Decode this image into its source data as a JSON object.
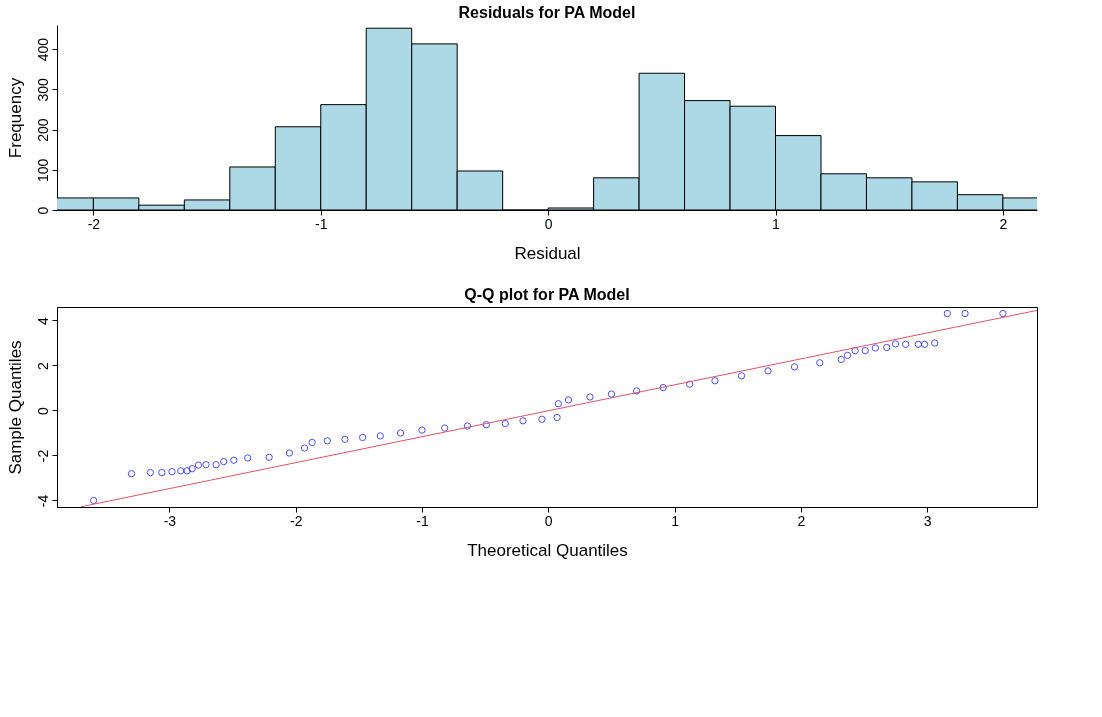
{
  "chart_data": [
    {
      "type": "histogram",
      "title": "Residuals for PA Model",
      "xlabel": "Residual",
      "ylabel": "Frequency",
      "color": "#add8e6",
      "bins": [
        -2.2,
        -2.0,
        -1.8,
        -1.6,
        -1.4,
        -1.2,
        -1.0,
        -0.8,
        -0.6,
        -0.4,
        -0.2,
        0.0,
        0.2,
        0.4,
        0.6,
        0.8,
        1.0,
        1.2,
        1.4,
        1.6,
        1.8,
        2.0,
        2.2
      ],
      "values": [
        30,
        30,
        12,
        25,
        107,
        207,
        262,
        452,
        413,
        97,
        0,
        5,
        80,
        340,
        272,
        258,
        185,
        90,
        80,
        70,
        38,
        30
      ],
      "xlim": [
        -2.16,
        2.15
      ],
      "xticks": [
        -2,
        -1,
        0,
        1,
        2
      ],
      "ylim": [
        0,
        460
      ],
      "yticks": [
        0,
        100,
        200,
        300,
        400
      ],
      "grid": false
    },
    {
      "type": "scatter",
      "title": "Q-Q plot for PA Model",
      "xlabel": "Theoretical Quantiles",
      "ylabel": "Sample Quantiles",
      "marker": "circle",
      "xlim": [
        -3.89,
        3.87
      ],
      "xticks": [
        -3,
        -2,
        -1,
        0,
        1,
        2,
        3
      ],
      "ylim": [
        -4.29,
        4.6
      ],
      "yticks": [
        -4,
        -2,
        0,
        2,
        4
      ],
      "grid": false,
      "series": [
        {
          "type": "scatter",
          "color": "#0000ff",
          "x": [
            -3.6,
            -3.3,
            -3.15,
            -3.06,
            -2.98,
            -2.91,
            -2.86,
            -2.82,
            -2.77,
            -2.71,
            -2.63,
            -2.57,
            -2.49,
            -2.38,
            -2.21,
            -2.05,
            -1.93,
            -1.87,
            -1.75,
            -1.61,
            -1.47,
            -1.33,
            -1.17,
            -1.0,
            -0.82,
            -0.64,
            -0.49,
            -0.34,
            -0.2,
            -0.05,
            0.07,
            0.08,
            0.16,
            0.33,
            0.5,
            0.7,
            0.91,
            1.12,
            1.32,
            1.53,
            1.74,
            1.95,
            2.15,
            2.32,
            2.37,
            2.43,
            2.51,
            2.59,
            2.68,
            2.75,
            2.83,
            2.93,
            2.98,
            3.06,
            3.16,
            3.3,
            3.6
          ],
          "values": [
            -4.0,
            -2.81,
            -2.76,
            -2.76,
            -2.72,
            -2.68,
            -2.68,
            -2.59,
            -2.43,
            -2.41,
            -2.41,
            -2.27,
            -2.21,
            -2.11,
            -2.08,
            -1.89,
            -1.67,
            -1.42,
            -1.35,
            -1.28,
            -1.2,
            -1.13,
            -1.0,
            -0.87,
            -0.78,
            -0.69,
            -0.63,
            -0.58,
            -0.46,
            -0.39,
            -0.31,
            0.3,
            0.47,
            0.6,
            0.73,
            0.87,
            1.02,
            1.17,
            1.32,
            1.54,
            1.76,
            1.94,
            2.12,
            2.27,
            2.45,
            2.66,
            2.66,
            2.78,
            2.8,
            2.96,
            2.94,
            2.94,
            2.94,
            3.0,
            4.31,
            4.31,
            4.31
          ]
        },
        {
          "type": "line",
          "marker": "none",
          "color": "#df536b",
          "x": [
            -3.7,
            3.87
          ],
          "values": [
            -4.28,
            4.45
          ]
        }
      ]
    }
  ]
}
